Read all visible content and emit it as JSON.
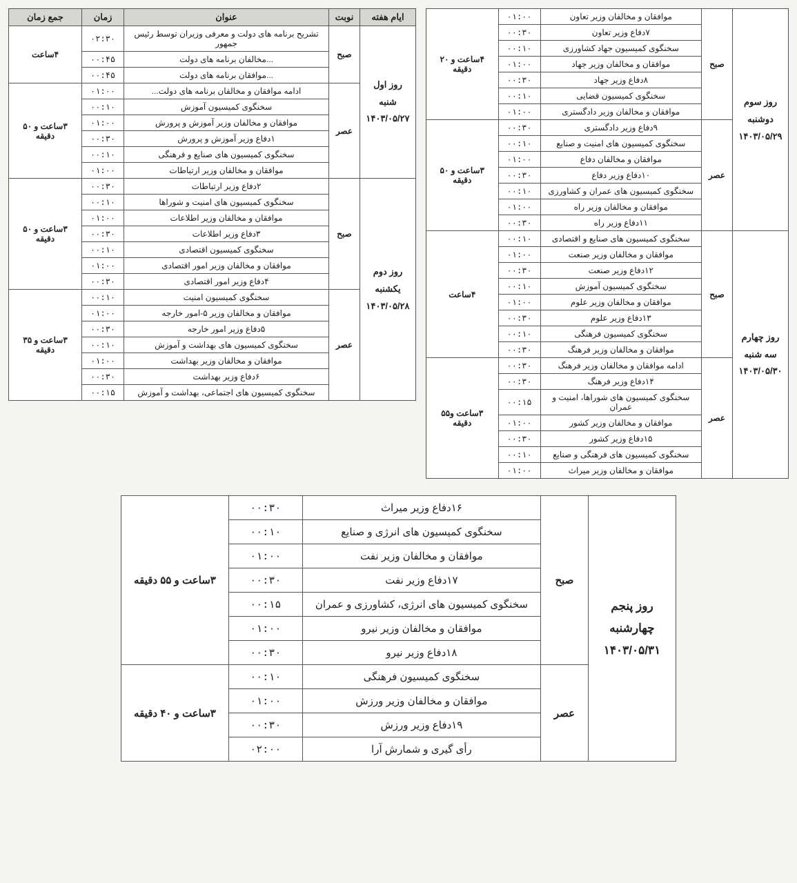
{
  "headers": {
    "day": "ایام هفته",
    "turn": "نوبت",
    "title": "عنوان",
    "time": "زمان",
    "total": "جمع زمان"
  },
  "leftTable": {
    "days": [
      {
        "label": "روز اول\nشنبه\n۱۴۰۳/۰۵/۲۷",
        "periods": [
          {
            "label": "صبح",
            "total": "۴ساعت",
            "rows": [
              {
                "title": "تشریح برنامه های دولت و معرفی وزیران توسط رئیس جمهور",
                "time": "۰۲:۳۰"
              },
              {
                "title": "...مخالفان برنامه های دولت",
                "time": "۰۰:۴۵"
              },
              {
                "title": "...موافقان برنامه های دولت",
                "time": "۰۰:۴۵"
              }
            ]
          },
          {
            "label": "عصر",
            "total": "۳ساعت و ۵۰ دقیقه",
            "rows": [
              {
                "title": "ادامه موافقان و مخالفان برنامه های دولت...",
                "time": "۰۱:۰۰"
              },
              {
                "title": "سخنگوی کمیسیون آموزش",
                "time": "۰۰:۱۰"
              },
              {
                "title": "موافقان و مخالفان وزیر آموزش و پرورش",
                "time": "۰۱:۰۰"
              },
              {
                "title": "۱دفاع وزیر آموزش و پرورش",
                "time": "۰۰:۳۰"
              },
              {
                "title": "سخنگوی کمیسیون های صنایع و فرهنگی",
                "time": "۰۰:۱۰"
              },
              {
                "title": "موافقان و مخالفان وزیر ارتباطات",
                "time": "۰۱:۰۰"
              }
            ]
          }
        ]
      },
      {
        "label": "روز دوم\nیکشنبه\n۱۴۰۳/۰۵/۲۸",
        "periods": [
          {
            "label": "صبح",
            "total": "۳ساعت و ۵۰ دقیقه",
            "rows": [
              {
                "title": "۲دفاع وزیر ارتباطات",
                "time": "۰۰:۳۰"
              },
              {
                "title": "سخنگوی کمیسیون های امنیت و شوراها",
                "time": "۰۰:۱۰"
              },
              {
                "title": "موافقان و مخالفان وزیر اطلاعات",
                "time": "۰۱:۰۰"
              },
              {
                "title": "۳دفاع وزیر اطلاعات",
                "time": "۰۰:۳۰"
              },
              {
                "title": "سخنگوی کمیسیون اقتصادی",
                "time": "۰۰:۱۰"
              },
              {
                "title": "موافقان و مخالفان وزیر امور اقتصادی",
                "time": "۰۱:۰۰"
              },
              {
                "title": "۴دفاع وزیر امور اقتصادی",
                "time": "۰۰:۳۰"
              }
            ]
          },
          {
            "label": "عصر",
            "total": "۳ساعت و ۳۵ دقیقه",
            "rows": [
              {
                "title": "سخنگوی کمیسیون امنیت",
                "time": "۰۰:۱۰"
              },
              {
                "title": "موافقان و مخالفان وزیر ۵-امور خارجه",
                "time": "۰۱:۰۰"
              },
              {
                "title": "۵دفاع وزیر امور خارجه",
                "time": "۰۰:۳۰"
              },
              {
                "title": "سخنگوی کمیسیون های بهداشت و آموزش",
                "time": "۰۰:۱۰"
              },
              {
                "title": "موافقان و مخالفان وزیر بهداشت",
                "time": "۰۱:۰۰"
              },
              {
                "title": "۶دفاع وزیر بهداشت",
                "time": "۰۰:۳۰"
              },
              {
                "title": "سخنگوی کمیسیون های اجتماعی، بهداشت و آموزش",
                "time": "۰۰:۱۵"
              }
            ]
          }
        ]
      }
    ]
  },
  "rightTable": {
    "days": [
      {
        "label": "روز سوم\nدوشنبه\n۱۴۰۳/۰۵/۲۹",
        "periods": [
          {
            "label": "صبح",
            "total": "۴ساعت و ۲۰ دقیقه",
            "rows": [
              {
                "title": "موافقان و مخالفان وزیر تعاون",
                "time": "۰۱:۰۰"
              },
              {
                "title": "۷دفاع وزیر تعاون",
                "time": "۰۰:۳۰"
              },
              {
                "title": "سخنگوی کمیسیون جهاد کشاورزی",
                "time": "۰۰:۱۰"
              },
              {
                "title": "موافقان و مخالفان وزیر جهاد",
                "time": "۰۱:۰۰"
              },
              {
                "title": "۸دفاع وزیر جهاد",
                "time": "۰۰:۳۰"
              },
              {
                "title": "سخنگوی کمیسیون قضایی",
                "time": "۰۰:۱۰"
              },
              {
                "title": "موافقان و مخالفان وزیر دادگستری",
                "time": "۰۱:۰۰"
              }
            ]
          },
          {
            "label": "عصر",
            "total": "۳ساعت و ۵۰ دقیقه",
            "rows": [
              {
                "title": "۹دفاع وزیر دادگستری",
                "time": "۰۰:۳۰"
              },
              {
                "title": "سخنگوی کمیسیون های امنیت و صنایع",
                "time": "۰۰:۱۰"
              },
              {
                "title": "موافقان و مخالفان دفاع",
                "time": "۰۱:۰۰"
              },
              {
                "title": "۱۰دفاع وزیر دفاع",
                "time": "۰۰:۳۰"
              },
              {
                "title": "سخنگوی کمیسیون های عمران و کشاورزی",
                "time": "۰۰:۱۰"
              },
              {
                "title": "موافقان و مخالفان وزیر راه",
                "time": "۰۱:۰۰"
              },
              {
                "title": "۱۱دفاع وزیر راه",
                "time": "۰۰:۳۰"
              }
            ]
          }
        ]
      },
      {
        "label": "روز چهارم\nسه شنبه\n۱۴۰۳/۰۵/۳۰",
        "periods": [
          {
            "label": "صبح",
            "total": "۴ساعت",
            "rows": [
              {
                "title": "سخنگوی کمیسیون های صنایع و اقتصادی",
                "time": "۰۰:۱۰"
              },
              {
                "title": "موافقان و مخالفان وزیر صنعت",
                "time": "۰۱:۰۰"
              },
              {
                "title": "۱۲دفاع وزیر صنعت",
                "time": "۰۰:۳۰"
              },
              {
                "title": "سخنگوی کمیسیون آموزش",
                "time": "۰۰:۱۰"
              },
              {
                "title": "موافقان و مخالفان وزیر علوم",
                "time": "۰۱:۰۰"
              },
              {
                "title": "۱۳دفاع وزیر علوم",
                "time": "۰۰:۳۰"
              },
              {
                "title": "سخنگوی کمیسیون فرهنگی",
                "time": "۰۰:۱۰"
              },
              {
                "title": "موافقان و مخالفان وزیر فرهنگ",
                "time": "۰۰:۳۰"
              }
            ]
          },
          {
            "label": "عصر",
            "total": "۳ساعت و۵۵ دقیقه",
            "rows": [
              {
                "title": "ادامه موافقان و مخالفان وزیر فرهنگ",
                "time": "۰۰:۳۰"
              },
              {
                "title": "۱۴دفاع وزیر فرهنگ",
                "time": "۰۰:۳۰"
              },
              {
                "title": "سخنگوی کمیسیون های شوراها، امنیت و عمران",
                "time": "۰۰:۱۵"
              },
              {
                "title": "موافقان و مخالفان وزیر کشور",
                "time": "۰۱:۰۰"
              },
              {
                "title": "۱۵دفاع وزیر کشور",
                "time": "۰۰:۳۰"
              },
              {
                "title": "سخنگوی کمیسیون های فرهنگی و صنایع",
                "time": "۰۰:۱۰"
              },
              {
                "title": "موافقان و مخالفان وزیر میراث",
                "time": "۰۱:۰۰"
              }
            ]
          }
        ]
      }
    ]
  },
  "bottomTable": {
    "days": [
      {
        "label": "روز پنجم\nچهارشنبه\n۱۴۰۳/۰۵/۳۱",
        "periods": [
          {
            "label": "صبح",
            "total": "۳ساعت و ۵۵ دقیقه",
            "rows": [
              {
                "title": "۱۶دفاع وزیر میراث",
                "time": "۰۰:۳۰"
              },
              {
                "title": "سخنگوی کمیسیون های انرژی و صنایع",
                "time": "۰۰:۱۰"
              },
              {
                "title": "موافقان و مخالفان وزیر نفت",
                "time": "۰۱:۰۰"
              },
              {
                "title": "۱۷دفاع وزیر نفت",
                "time": "۰۰:۳۰"
              },
              {
                "title": "سخنگوی کمیسیون های انرژی، کشاورزی و عمران",
                "time": "۰۰:۱۵"
              },
              {
                "title": "موافقان و مخالفان وزیر نیرو",
                "time": "۰۱:۰۰"
              },
              {
                "title": "۱۸دفاع وزیر نیرو",
                "time": "۰۰:۳۰"
              }
            ]
          },
          {
            "label": "عصر",
            "total": "۳ساعت و ۴۰ دقیقه",
            "rows": [
              {
                "title": "سخنگوی کمیسیون فرهنگی",
                "time": "۰۰:۱۰"
              },
              {
                "title": "موافقان و مخالفان وزیر ورزش",
                "time": "۰۱:۰۰"
              },
              {
                "title": "۱۹دفاع وزیر ورزش",
                "time": "۰۰:۳۰"
              },
              {
                "title": "رأی گیری و شمارش آرا",
                "time": "۰۲:۰۰"
              }
            ]
          }
        ]
      }
    ]
  }
}
